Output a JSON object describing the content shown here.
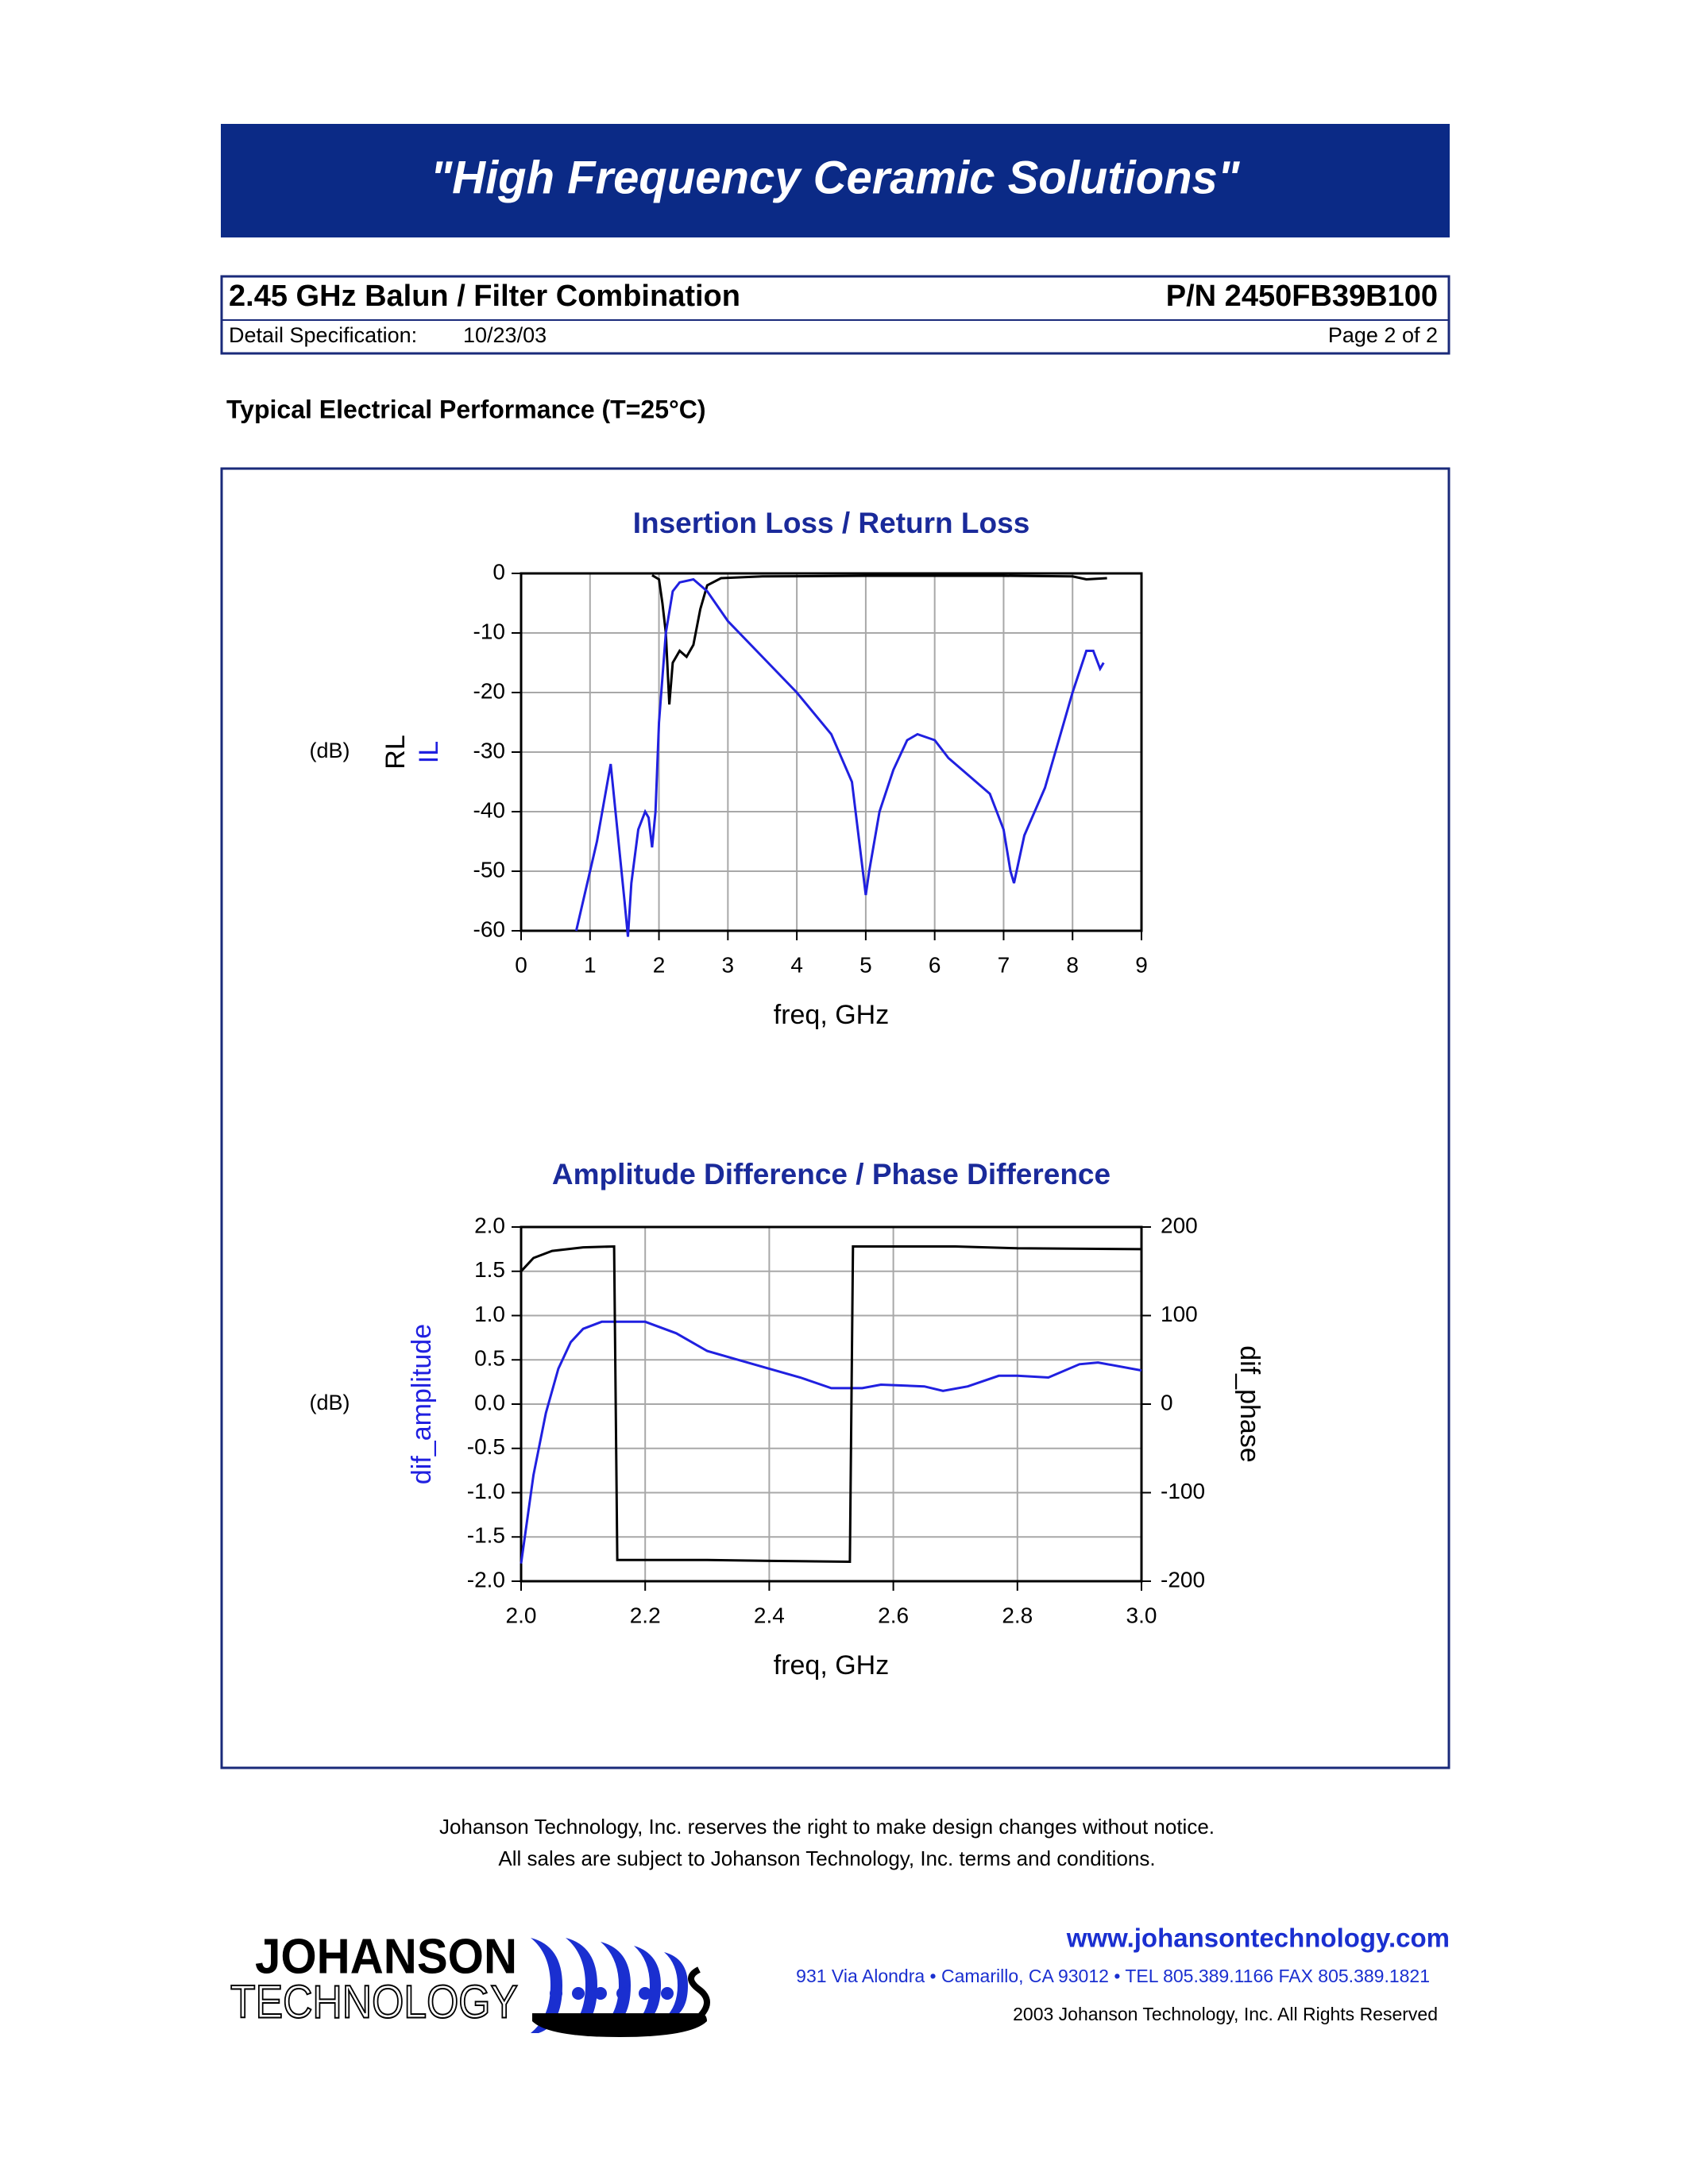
{
  "header": {
    "title": "\"High Frequency Ceramic Solutions\""
  },
  "spec": {
    "product": "2.45 GHz Balun / Filter Combination",
    "part_number": "P/N 2450FB39B100",
    "detail_label": "Detail Specification:",
    "date": "10/23/03",
    "page": "Page 2 of 2"
  },
  "section_title": "Typical Electrical Performance (T=25°C)",
  "chart_data": [
    {
      "type": "line",
      "title": "Insertion Loss / Return Loss",
      "x_label": "freq, GHz",
      "unit_label": "(dB)",
      "xlim": [
        0,
        9
      ],
      "xticks": [
        0,
        1,
        2,
        3,
        4,
        5,
        6,
        7,
        8,
        9
      ],
      "ylim": [
        -60,
        0
      ],
      "yticks": [
        0,
        -10,
        -20,
        -30,
        -40,
        -50,
        -60
      ],
      "grid": true,
      "series": [
        {
          "name": "RL",
          "color": "#000000",
          "x": [
            1.9,
            2.0,
            2.05,
            2.1,
            2.15,
            2.2,
            2.3,
            2.4,
            2.5,
            2.6,
            2.7,
            2.9,
            3.5,
            5.0,
            7.0,
            8.0,
            8.2,
            8.5
          ],
          "values": [
            -0.3,
            -1,
            -5,
            -10,
            -22,
            -15,
            -13,
            -14,
            -12,
            -6,
            -2,
            -0.8,
            -0.5,
            -0.4,
            -0.4,
            -0.5,
            -1,
            -0.8
          ]
        },
        {
          "name": "IL",
          "color": "#2020e0",
          "x": [
            0.8,
            1.1,
            1.3,
            1.5,
            1.55,
            1.6,
            1.7,
            1.8,
            1.85,
            1.9,
            1.95,
            2.0,
            2.1,
            2.2,
            2.3,
            2.5,
            2.7,
            3.0,
            3.5,
            4.0,
            4.5,
            4.8,
            5.0,
            5.05,
            5.2,
            5.4,
            5.6,
            5.75,
            6.0,
            6.2,
            6.5,
            6.8,
            6.9,
            7.0,
            7.1,
            7.15,
            7.3,
            7.6,
            7.8,
            8.0,
            8.2,
            8.3,
            8.4,
            8.45
          ],
          "values": [
            -60,
            -45,
            -32,
            -55,
            -61,
            -52,
            -43,
            -40,
            -41,
            -46,
            -40,
            -25,
            -10,
            -3,
            -1.5,
            -1,
            -3,
            -8,
            -14,
            -20,
            -27,
            -35,
            -54,
            -50,
            -40,
            -33,
            -28,
            -27,
            -28,
            -31,
            -34,
            -37,
            -40,
            -43,
            -50,
            -52,
            -44,
            -36,
            -28,
            -20,
            -13,
            -13,
            -16,
            -15
          ]
        }
      ]
    },
    {
      "type": "line",
      "title": "Amplitude Difference / Phase Difference",
      "x_label": "freq, GHz",
      "unit_label": "(dB)",
      "xlim": [
        2,
        3
      ],
      "xticks": [
        {
          "value": 2,
          "label": "2.0"
        },
        2.2,
        2.4,
        2.6,
        2.8,
        {
          "value": 3,
          "label": "3.0"
        }
      ],
      "ylim": [
        -2,
        2
      ],
      "yticks": [
        {
          "value": 2,
          "label": "2.0"
        },
        1.5,
        {
          "value": 1,
          "label": "1.0"
        },
        0.5,
        {
          "value": 0,
          "label": "0.0"
        },
        -0.5,
        {
          "value": -1,
          "label": "-1.0"
        },
        -1.5,
        {
          "value": -2,
          "label": "-2.0"
        }
      ],
      "y2lim": [
        -200,
        200
      ],
      "y2ticks": [
        200,
        100,
        0,
        -100,
        -200
      ],
      "grid": true,
      "series": [
        {
          "name": "dif_amplitude",
          "color": "#2020e0",
          "x": [
            2.0,
            2.02,
            2.04,
            2.06,
            2.08,
            2.1,
            2.13,
            2.2,
            2.25,
            2.3,
            2.35,
            2.4,
            2.45,
            2.5,
            2.55,
            2.58,
            2.65,
            2.68,
            2.72,
            2.77,
            2.8,
            2.85,
            2.9,
            2.93,
            3.0
          ],
          "values": [
            -1.8,
            -0.8,
            -0.1,
            0.4,
            0.7,
            0.85,
            0.93,
            0.93,
            0.8,
            0.6,
            0.5,
            0.4,
            0.3,
            0.18,
            0.18,
            0.22,
            0.2,
            0.15,
            0.2,
            0.32,
            0.32,
            0.3,
            0.45,
            0.47,
            0.38
          ]
        },
        {
          "name": "dif_phase",
          "color": "#000000",
          "axis": "y2",
          "x": [
            2.0,
            2.02,
            2.05,
            2.1,
            2.15,
            2.155,
            2.3,
            2.4,
            2.53,
            2.535,
            2.7,
            2.8,
            3.0
          ],
          "values": [
            150,
            165,
            173,
            177,
            178,
            -176,
            -176,
            -177,
            -178,
            178,
            178,
            176,
            175
          ]
        }
      ]
    }
  ],
  "footer": {
    "notice_1": "Johanson Technology, Inc. reserves the right to make design changes without notice.",
    "notice_2": "All sales are subject to Johanson Technology, Inc. terms and conditions.",
    "logo_1": "JOHANSON",
    "logo_2": "TECHNOLOGY",
    "url": "www.johansontechnology.com",
    "address": "931 Via Alondra • Camarillo, CA 93012 • TEL 805.389.1166 FAX 805.389.1821",
    "copyright": "2003 Johanson Technology, Inc.  All Rights Reserved"
  }
}
